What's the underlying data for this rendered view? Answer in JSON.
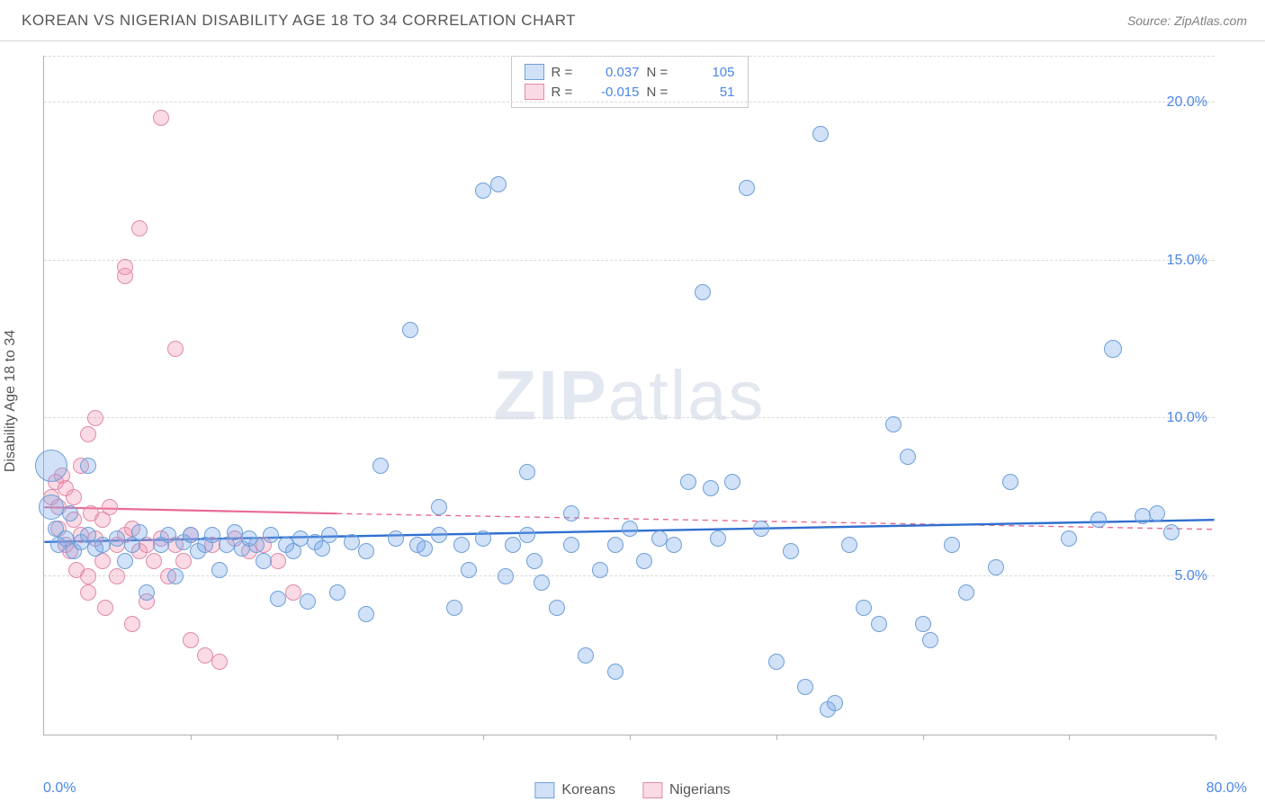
{
  "title": "KOREAN VS NIGERIAN DISABILITY AGE 18 TO 34 CORRELATION CHART",
  "source": "Source: ZipAtlas.com",
  "ylabel": "Disability Age 18 to 34",
  "watermark_a": "ZIP",
  "watermark_b": "atlas",
  "chart": {
    "type": "scatter",
    "xlim": [
      0,
      80
    ],
    "ylim": [
      0,
      21.5
    ],
    "x_ticks": [
      0,
      10,
      20,
      30,
      40,
      50,
      60,
      70,
      80
    ],
    "y_ticks": [
      5,
      10,
      15,
      20
    ],
    "y_tick_labels": [
      "5.0%",
      "10.0%",
      "15.0%",
      "20.0%"
    ],
    "x_min_label": "0.0%",
    "x_max_label": "80.0%",
    "background_color": "#ffffff",
    "grid_color": "#d8d8d8",
    "axis_color": "#b0b0b0",
    "tick_label_color": "#4a86e8",
    "series": {
      "koreans": {
        "label": "Koreans",
        "color_fill": "rgba(120,170,235,0.35)",
        "color_stroke": "#6f9fd8",
        "R": "0.037",
        "N": "105",
        "trend": {
          "x1": 0,
          "y1": 6.1,
          "x2": 80,
          "y2": 6.8,
          "color": "#2f6fd0",
          "width": 2.4
        },
        "points": [
          [
            0.5,
            7.2,
            14
          ],
          [
            0.5,
            8.5,
            18
          ],
          [
            0.8,
            6.5,
            9
          ],
          [
            1,
            6.0,
            9
          ],
          [
            1.5,
            6.2,
            9
          ],
          [
            1.8,
            7.0,
            9
          ],
          [
            2,
            5.8,
            9
          ],
          [
            2.5,
            6.1,
            9
          ],
          [
            3,
            6.3,
            9
          ],
          [
            3,
            8.5,
            9
          ],
          [
            3.5,
            5.9,
            9
          ],
          [
            4,
            6.0,
            9
          ],
          [
            5,
            6.2,
            9
          ],
          [
            5.5,
            5.5,
            9
          ],
          [
            6,
            6.0,
            9
          ],
          [
            6.5,
            6.4,
            9
          ],
          [
            7,
            4.5,
            9
          ],
          [
            8,
            6.0,
            9
          ],
          [
            8.5,
            6.3,
            9
          ],
          [
            9,
            5.0,
            9
          ],
          [
            9.5,
            6.1,
            9
          ],
          [
            10,
            6.3,
            9
          ],
          [
            10.5,
            5.8,
            9
          ],
          [
            11,
            6.0,
            9
          ],
          [
            11.5,
            6.3,
            9
          ],
          [
            12,
            5.2,
            9
          ],
          [
            12.5,
            6.0,
            9
          ],
          [
            13,
            6.4,
            9
          ],
          [
            13.5,
            5.9,
            9
          ],
          [
            14,
            6.2,
            9
          ],
          [
            14.5,
            6.0,
            9
          ],
          [
            15,
            5.5,
            9
          ],
          [
            15.5,
            6.3,
            9
          ],
          [
            16,
            4.3,
            9
          ],
          [
            16.5,
            6.0,
            9
          ],
          [
            17,
            5.8,
            9
          ],
          [
            17.5,
            6.2,
            9
          ],
          [
            18,
            4.2,
            9
          ],
          [
            18.5,
            6.1,
            9
          ],
          [
            19,
            5.9,
            9
          ],
          [
            19.5,
            6.3,
            9
          ],
          [
            20,
            4.5,
            9
          ],
          [
            21,
            6.1,
            9
          ],
          [
            22,
            5.8,
            9
          ],
          [
            22,
            3.8,
            9
          ],
          [
            23,
            8.5,
            9
          ],
          [
            24,
            6.2,
            9
          ],
          [
            25,
            12.8,
            9
          ],
          [
            25.5,
            6.0,
            9
          ],
          [
            26,
            5.9,
            9
          ],
          [
            27,
            6.3,
            9
          ],
          [
            27,
            7.2,
            9
          ],
          [
            28,
            4.0,
            9
          ],
          [
            28.5,
            6.0,
            9
          ],
          [
            29,
            5.2,
            9
          ],
          [
            30,
            17.2,
            9
          ],
          [
            30,
            6.2,
            9
          ],
          [
            31,
            17.4,
            9
          ],
          [
            31.5,
            5.0,
            9
          ],
          [
            32,
            6.0,
            9
          ],
          [
            33,
            6.3,
            9
          ],
          [
            33,
            8.3,
            9
          ],
          [
            33.5,
            5.5,
            9
          ],
          [
            34,
            4.8,
            9
          ],
          [
            35,
            4.0,
            9
          ],
          [
            36,
            6.0,
            9
          ],
          [
            36,
            7.0,
            9
          ],
          [
            37,
            2.5,
            9
          ],
          [
            38,
            5.2,
            9
          ],
          [
            39,
            6.0,
            9
          ],
          [
            39,
            2.0,
            9
          ],
          [
            40,
            6.5,
            9
          ],
          [
            41,
            5.5,
            9
          ],
          [
            42,
            6.2,
            9
          ],
          [
            43,
            6.0,
            9
          ],
          [
            44,
            8.0,
            9
          ],
          [
            45,
            14.0,
            9
          ],
          [
            45.5,
            7.8,
            9
          ],
          [
            46,
            6.2,
            9
          ],
          [
            47,
            8.0,
            9
          ],
          [
            48,
            17.3,
            9
          ],
          [
            49,
            6.5,
            9
          ],
          [
            50,
            2.3,
            9
          ],
          [
            51,
            5.8,
            9
          ],
          [
            52,
            1.5,
            9
          ],
          [
            53,
            19.0,
            9
          ],
          [
            53.5,
            0.8,
            9
          ],
          [
            54,
            1.0,
            9
          ],
          [
            55,
            6.0,
            9
          ],
          [
            56,
            4.0,
            9
          ],
          [
            57,
            3.5,
            9
          ],
          [
            58,
            9.8,
            9
          ],
          [
            59,
            8.8,
            9
          ],
          [
            60,
            3.5,
            9
          ],
          [
            60.5,
            3.0,
            9
          ],
          [
            62,
            6.0,
            9
          ],
          [
            63,
            4.5,
            9
          ],
          [
            65,
            5.3,
            9
          ],
          [
            66,
            8.0,
            9
          ],
          [
            70,
            6.2,
            9
          ],
          [
            72,
            6.8,
            9
          ],
          [
            73,
            12.2,
            10
          ],
          [
            75,
            6.9,
            9
          ],
          [
            76,
            7.0,
            9
          ],
          [
            77,
            6.4,
            9
          ]
        ]
      },
      "nigerians": {
        "label": "Nigerians",
        "color_fill": "rgba(240,150,180,0.35)",
        "color_stroke": "#e08aa8",
        "R": "-0.015",
        "N": "51",
        "trend_solid": {
          "x1": 0,
          "y1": 7.2,
          "x2": 20,
          "y2": 7.0,
          "color": "#e86b93",
          "width": 2.2
        },
        "trend_dash": {
          "x1": 20,
          "y1": 7.0,
          "x2": 80,
          "y2": 6.5,
          "color": "#e86b93",
          "width": 1.4
        },
        "points": [
          [
            0.5,
            7.5,
            9
          ],
          [
            0.8,
            8.0,
            9
          ],
          [
            1,
            6.5,
            9
          ],
          [
            1,
            7.2,
            9
          ],
          [
            1.2,
            8.2,
            9
          ],
          [
            1.5,
            6.0,
            9
          ],
          [
            1.5,
            7.8,
            9
          ],
          [
            1.8,
            5.8,
            9
          ],
          [
            2,
            6.8,
            9
          ],
          [
            2,
            7.5,
            9
          ],
          [
            2.2,
            5.2,
            9
          ],
          [
            2.5,
            8.5,
            9
          ],
          [
            2.5,
            6.3,
            9
          ],
          [
            3,
            9.5,
            9
          ],
          [
            3,
            5.0,
            9
          ],
          [
            3,
            4.5,
            9
          ],
          [
            3.2,
            7.0,
            9
          ],
          [
            3.5,
            10.0,
            9
          ],
          [
            3.5,
            6.2,
            9
          ],
          [
            4,
            5.5,
            9
          ],
          [
            4,
            6.8,
            9
          ],
          [
            4.2,
            4.0,
            9
          ],
          [
            4.5,
            7.2,
            9
          ],
          [
            5,
            6.0,
            9
          ],
          [
            5,
            5.0,
            9
          ],
          [
            5.5,
            14.5,
            9
          ],
          [
            5.5,
            14.8,
            9
          ],
          [
            5.5,
            6.3,
            9
          ],
          [
            6,
            3.5,
            9
          ],
          [
            6,
            6.5,
            9
          ],
          [
            6.5,
            5.8,
            9
          ],
          [
            6.5,
            16.0,
            9
          ],
          [
            7,
            6.0,
            9
          ],
          [
            7,
            4.2,
            9
          ],
          [
            7.5,
            5.5,
            9
          ],
          [
            8,
            6.2,
            9
          ],
          [
            8,
            19.5,
            9
          ],
          [
            8.5,
            5.0,
            9
          ],
          [
            9,
            6.0,
            9
          ],
          [
            9,
            12.2,
            9
          ],
          [
            9.5,
            5.5,
            9
          ],
          [
            10,
            3.0,
            9
          ],
          [
            10,
            6.3,
            9
          ],
          [
            11,
            2.5,
            9
          ],
          [
            11.5,
            6.0,
            9
          ],
          [
            12,
            2.3,
            9
          ],
          [
            13,
            6.2,
            9
          ],
          [
            14,
            5.8,
            9
          ],
          [
            15,
            6.0,
            9
          ],
          [
            16,
            5.5,
            9
          ],
          [
            17,
            4.5,
            9
          ]
        ]
      }
    }
  }
}
